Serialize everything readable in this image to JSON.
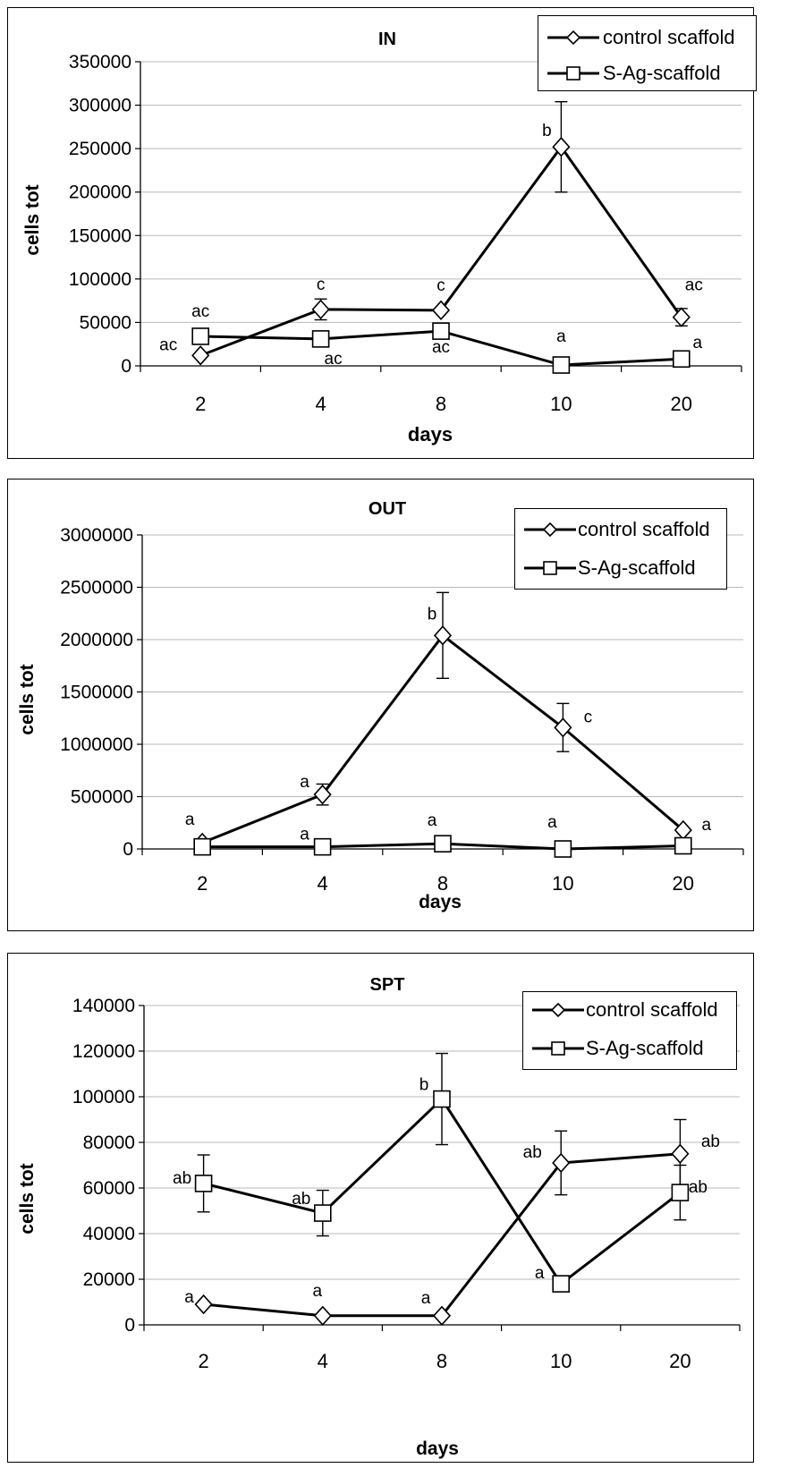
{
  "chart_data": [
    {
      "type": "line",
      "title": "IN",
      "xlabel": "days",
      "ylabel": "cells tot",
      "categories": [
        "2",
        "4",
        "8",
        "10",
        "20"
      ],
      "ylim": [
        0,
        350000
      ],
      "yticks": [
        "0",
        "50000",
        "100000",
        "150000",
        "200000",
        "250000",
        "300000",
        "350000"
      ],
      "grid": true,
      "legend_position": "top-right",
      "series": [
        {
          "name": "control scaffold",
          "marker": "diamond",
          "values": [
            12000,
            65000,
            64000,
            252000,
            56000
          ],
          "errors": [
            0,
            12000,
            0,
            52000,
            10000
          ],
          "annotations": [
            "ac",
            "c",
            "c",
            "b",
            "ac"
          ]
        },
        {
          "name": "S-Ag-scaffold",
          "marker": "square",
          "values": [
            34000,
            31000,
            40000,
            1000,
            8000
          ],
          "errors": [
            0,
            0,
            0,
            0,
            0
          ],
          "annotations": [
            "ac",
            "ac",
            "ac",
            "a",
            "a"
          ]
        }
      ]
    },
    {
      "type": "line",
      "title": "OUT",
      "xlabel": "days",
      "ylabel": "cells tot",
      "categories": [
        "2",
        "4",
        "8",
        "10",
        "20"
      ],
      "ylim": [
        0,
        3000000
      ],
      "yticks": [
        "0",
        "500000",
        "1000000",
        "1500000",
        "2000000",
        "2500000",
        "3000000"
      ],
      "grid": true,
      "legend_position": "top-right",
      "series": [
        {
          "name": "control scaffold",
          "marker": "diamond",
          "values": [
            60000,
            520000,
            2040000,
            1160000,
            180000
          ],
          "errors": [
            0,
            100000,
            410000,
            230000,
            0
          ],
          "annotations": [
            "a",
            "a",
            "b",
            "c",
            "a"
          ]
        },
        {
          "name": "S-Ag-scaffold",
          "marker": "square",
          "values": [
            20000,
            20000,
            50000,
            0,
            30000
          ],
          "errors": [
            0,
            0,
            0,
            0,
            0
          ],
          "annotations": [
            "",
            "a",
            "a",
            "a",
            ""
          ]
        }
      ]
    },
    {
      "type": "line",
      "title": "SPT",
      "xlabel": "days",
      "ylabel": "cells tot",
      "categories": [
        "2",
        "4",
        "8",
        "10",
        "20"
      ],
      "ylim": [
        0,
        140000
      ],
      "yticks": [
        "0",
        "20000",
        "40000",
        "60000",
        "80000",
        "100000",
        "120000",
        "140000"
      ],
      "grid": true,
      "legend_position": "top-right",
      "series": [
        {
          "name": "control scaffold",
          "marker": "diamond",
          "values": [
            9000,
            4000,
            4000,
            71000,
            75000
          ],
          "errors": [
            0,
            0,
            0,
            14000,
            15000
          ],
          "annotations": [
            "a",
            "a",
            "a",
            "ab",
            "ab"
          ]
        },
        {
          "name": "S-Ag-scaffold",
          "marker": "square",
          "values": [
            62000,
            49000,
            99000,
            18000,
            58000
          ],
          "errors": [
            12500,
            10000,
            20000,
            0,
            12000
          ],
          "annotations": [
            "ab",
            "ab",
            "b",
            "a",
            "ab"
          ]
        }
      ]
    }
  ]
}
